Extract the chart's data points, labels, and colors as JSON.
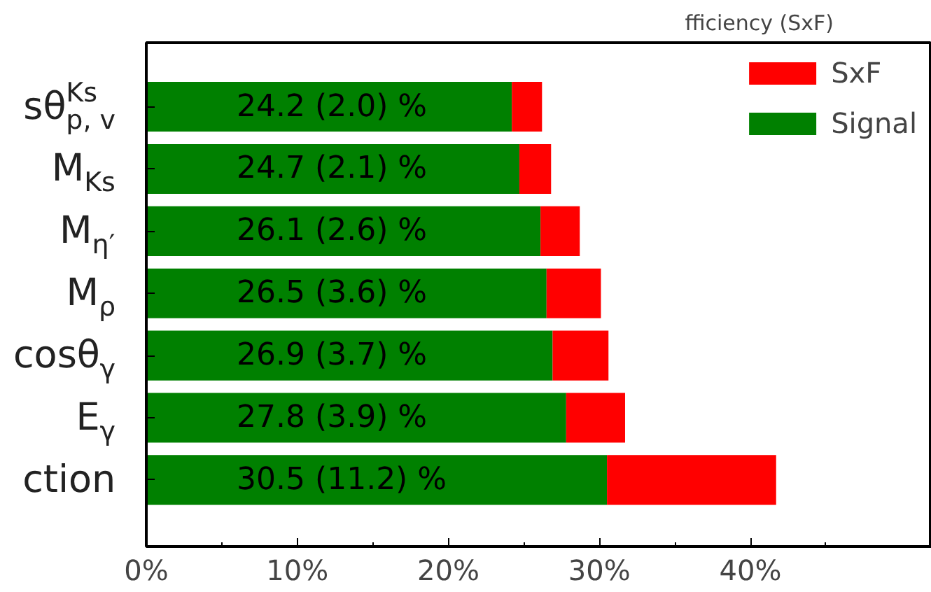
{
  "chart_data": {
    "type": "bar",
    "orientation": "horizontal",
    "stacked": true,
    "title": "fficiency (SxF)",
    "categories": [
      "sθ$^{Ks}$$_{p, v}$",
      "M$_{Ks}$",
      "M$_{η′}$",
      "M$_{ρ}$",
      "cosθ$_{γ}$",
      "E$_{γ}$",
      "ction"
    ],
    "series": [
      {
        "name": "Signal",
        "color": "#008000",
        "values": [
          24.2,
          24.7,
          26.1,
          26.5,
          26.9,
          27.8,
          30.5
        ],
        "value_labels": [
          "24.2 (2.0) %",
          "24.7 (2.1) %",
          "26.1 (2.6) %",
          "26.5 (3.6) %",
          "26.9 (3.7) %",
          "27.8 (3.9) %",
          "30.5 (11.2) %"
        ]
      },
      {
        "name": "SxF",
        "color": "#ff0000",
        "values": [
          2.0,
          2.1,
          2.6,
          3.6,
          3.7,
          3.9,
          11.2
        ]
      }
    ],
    "xlim": [
      0,
      52
    ],
    "xticks": [
      {
        "value": 0,
        "label": "0%"
      },
      {
        "value": 5,
        "label": null
      },
      {
        "value": 10,
        "label": "10%"
      },
      {
        "value": 15,
        "label": null
      },
      {
        "value": 20,
        "label": "20%"
      },
      {
        "value": 25,
        "label": null
      },
      {
        "value": 30,
        "label": "30%"
      },
      {
        "value": 35,
        "label": null
      },
      {
        "value": 40,
        "label": "40%"
      },
      {
        "value": 45,
        "label": null
      }
    ],
    "legend": "top right",
    "grid": false
  }
}
